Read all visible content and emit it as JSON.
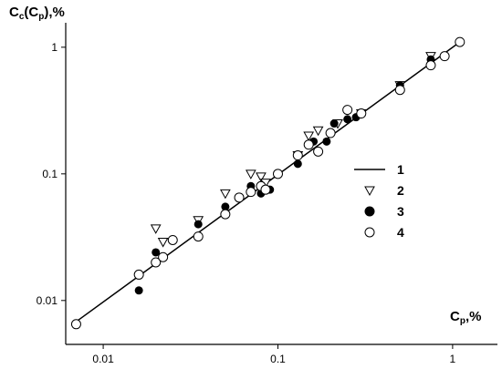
{
  "chart_data": {
    "type": "scatter",
    "ylabel": [
      "C",
      "c",
      "(C",
      "p",
      "),%"
    ],
    "xlabel": [
      "C",
      "p",
      ",%"
    ],
    "log_x": true,
    "log_y": true,
    "xlim": [
      0.0061,
      1.7
    ],
    "ylim": [
      0.0045,
      1.56
    ],
    "xticks": [
      0.01,
      0.1,
      1
    ],
    "yticks": [
      0.01,
      0.1,
      1
    ],
    "series": [
      {
        "name": "1",
        "color": "#000000",
        "marker": "line",
        "x": [
          0.007,
          1.1
        ],
        "values": [
          0.0068,
          1.1
        ]
      },
      {
        "name": "2",
        "color": "#000000",
        "marker": "triangle-down-open",
        "x": [
          0.02,
          0.022,
          0.035,
          0.05,
          0.07,
          0.08,
          0.085,
          0.13,
          0.15,
          0.17,
          0.22,
          0.3,
          0.5,
          0.75
        ],
        "values": [
          0.037,
          0.029,
          0.043,
          0.07,
          0.1,
          0.095,
          0.085,
          0.14,
          0.2,
          0.22,
          0.25,
          0.3,
          0.5,
          0.85
        ]
      },
      {
        "name": "3",
        "color": "#000000",
        "marker": "circle-filled",
        "x": [
          0.016,
          0.02,
          0.022,
          0.035,
          0.05,
          0.07,
          0.08,
          0.09,
          0.13,
          0.16,
          0.19,
          0.21,
          0.25,
          0.28,
          0.5,
          0.75
        ],
        "values": [
          0.012,
          0.024,
          0.022,
          0.04,
          0.055,
          0.08,
          0.07,
          0.075,
          0.12,
          0.18,
          0.18,
          0.25,
          0.27,
          0.28,
          0.5,
          0.8
        ]
      },
      {
        "name": "4",
        "color": "#000000",
        "marker": "circle-open",
        "x": [
          0.007,
          0.016,
          0.02,
          0.022,
          0.025,
          0.035,
          0.05,
          0.06,
          0.07,
          0.08,
          0.085,
          0.1,
          0.13,
          0.15,
          0.17,
          0.2,
          0.25,
          0.3,
          0.5,
          0.75,
          0.9,
          1.1
        ],
        "values": [
          0.0065,
          0.016,
          0.02,
          0.022,
          0.03,
          0.032,
          0.048,
          0.065,
          0.072,
          0.08,
          0.075,
          0.1,
          0.14,
          0.17,
          0.15,
          0.21,
          0.32,
          0.3,
          0.46,
          0.72,
          0.85,
          1.1
        ]
      }
    ]
  }
}
